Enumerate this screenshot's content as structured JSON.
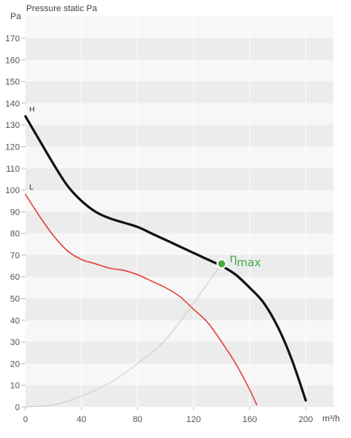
{
  "chart_data": {
    "type": "line",
    "title": "Pressure static Pa",
    "ylabel": "Pa",
    "xlabel": "m³/h",
    "xlim": [
      0,
      200
    ],
    "ylim": [
      0,
      175
    ],
    "x_ticks": [
      0,
      40,
      80,
      120,
      160,
      200
    ],
    "y_ticks": [
      0,
      10,
      20,
      30,
      40,
      50,
      60,
      70,
      80,
      90,
      100,
      110,
      120,
      130,
      140,
      150,
      160,
      170
    ],
    "grid": "alternating horizontal bands",
    "series": [
      {
        "name": "H",
        "color": "#111111",
        "points": [
          [
            0,
            134
          ],
          [
            10,
            123
          ],
          [
            20,
            112
          ],
          [
            30,
            102
          ],
          [
            40,
            95
          ],
          [
            50,
            90
          ],
          [
            60,
            87
          ],
          [
            70,
            85
          ],
          [
            80,
            83
          ],
          [
            90,
            80
          ],
          [
            100,
            77
          ],
          [
            110,
            74
          ],
          [
            120,
            71
          ],
          [
            130,
            68
          ],
          [
            140,
            65
          ],
          [
            150,
            61
          ],
          [
            160,
            55
          ],
          [
            170,
            48
          ],
          [
            180,
            37
          ],
          [
            190,
            22
          ],
          [
            200,
            3
          ]
        ]
      },
      {
        "name": "L",
        "color": "#e0403a",
        "points": [
          [
            0,
            98
          ],
          [
            10,
            88
          ],
          [
            20,
            79
          ],
          [
            30,
            72
          ],
          [
            40,
            68
          ],
          [
            50,
            66
          ],
          [
            60,
            64
          ],
          [
            70,
            63
          ],
          [
            80,
            61
          ],
          [
            90,
            58
          ],
          [
            100,
            55
          ],
          [
            110,
            51
          ],
          [
            120,
            45
          ],
          [
            130,
            39
          ],
          [
            140,
            30
          ],
          [
            150,
            20
          ],
          [
            160,
            8
          ],
          [
            165,
            1
          ]
        ]
      },
      {
        "name": "",
        "color": "#cccccc",
        "points": [
          [
            0,
            0
          ],
          [
            20,
            1
          ],
          [
            40,
            5
          ],
          [
            60,
            11
          ],
          [
            80,
            20
          ],
          [
            100,
            31
          ],
          [
            120,
            48
          ],
          [
            140,
            66
          ]
        ]
      }
    ],
    "annotations": [
      {
        "label": "η",
        "subscript": "max",
        "x": 140,
        "y": 66,
        "color": "#4aa84a"
      }
    ]
  }
}
